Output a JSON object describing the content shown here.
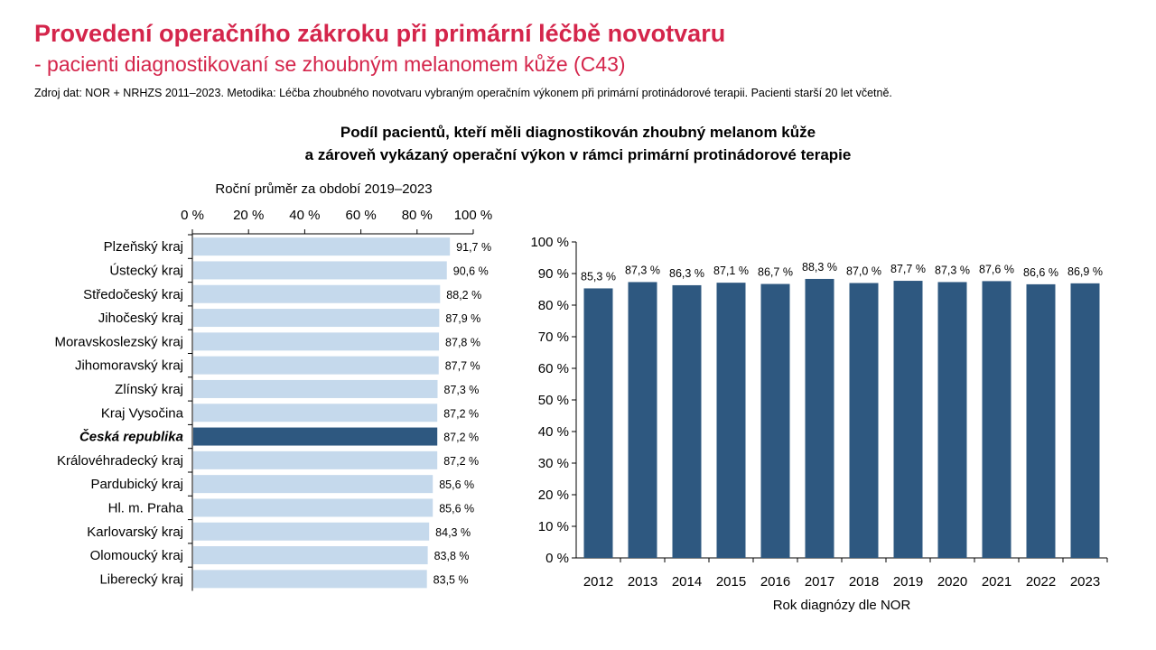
{
  "header": {
    "title": "Provedení operačního zákroku při primární léčbě novotvaru",
    "subtitle": "- pacienti diagnostikovaní se zhoubným melanomem kůže (C43)",
    "source": "Zdroj dat: NOR + NRHZS 2011–2023. Metodika: Léčba zhoubného novotvaru vybraným operačním výkonem při primární protinádorové terapii. Pacienti starší 20 let včetně."
  },
  "chart_title": {
    "line1": "Podíl pacientů, kteří měli diagnostikován zhoubný melanom kůže",
    "line2": "a zároveň vykázaný operační výkon v rámci primární protinádorové terapie"
  },
  "chart_data": [
    {
      "type": "bar",
      "orientation": "horizontal",
      "title": "Roční průměr za období 2019–2023",
      "xlabel": "",
      "ylabel": "",
      "xlim": [
        0,
        100
      ],
      "x_ticks": [
        "0 %",
        "20 %",
        "40 %",
        "60 %",
        "80 %",
        "100 %"
      ],
      "x_axis_position": "top",
      "grid": false,
      "categories": [
        "Plzeňský kraj",
        "Ústecký kraj",
        "Středočeský kraj",
        "Jihočeský kraj",
        "Moravskoslezský kraj",
        "Jihomoravský kraj",
        "Zlínský kraj",
        "Kraj Vysočina",
        "Česká republika",
        "Královéhradecký kraj",
        "Pardubický kraj",
        "Hl. m. Praha",
        "Karlovarský kraj",
        "Olomoucký kraj",
        "Liberecký kraj"
      ],
      "values": [
        91.7,
        90.6,
        88.2,
        87.9,
        87.8,
        87.7,
        87.3,
        87.2,
        87.2,
        87.2,
        85.6,
        85.6,
        84.3,
        83.8,
        83.5
      ],
      "value_labels": [
        "91,7 %",
        "90,6 %",
        "88,2 %",
        "87,9 %",
        "87,8 %",
        "87,7 %",
        "87,3 %",
        "87,2 %",
        "87,2 %",
        "87,2 %",
        "85,6 %",
        "85,6 %",
        "84,3 %",
        "83,8 %",
        "83,5 %"
      ],
      "highlight_category": "Česká republika",
      "colors": {
        "bar": "#c5d9ec",
        "highlight": "#2e5880"
      }
    },
    {
      "type": "bar",
      "orientation": "vertical",
      "title": "",
      "xlabel": "Rok diagnózy dle NOR",
      "ylabel": "",
      "ylim": [
        0,
        100
      ],
      "y_ticks": [
        "0 %",
        "10 %",
        "20 %",
        "30 %",
        "40 %",
        "50 %",
        "60 %",
        "70 %",
        "80 %",
        "90 %",
        "100 %"
      ],
      "grid": false,
      "categories": [
        "2012",
        "2013",
        "2014",
        "2015",
        "2016",
        "2017",
        "2018",
        "2019",
        "2020",
        "2021",
        "2022",
        "2023"
      ],
      "values": [
        85.3,
        87.3,
        86.3,
        87.1,
        86.7,
        88.3,
        87.0,
        87.7,
        87.3,
        87.6,
        86.6,
        86.9
      ],
      "value_labels": [
        "85,3 %",
        "87,3 %",
        "86,3 %",
        "87,1 %",
        "86,7 %",
        "88,3 %",
        "87,0 %",
        "87,7 %",
        "87,3 %",
        "87,6 %",
        "86,6 %",
        "86,9 %"
      ],
      "colors": {
        "bar": "#2e5880"
      }
    }
  ]
}
